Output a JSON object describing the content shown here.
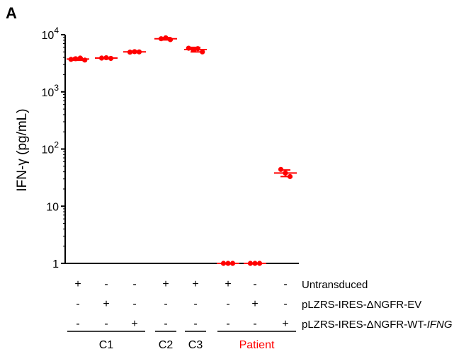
{
  "panel_label": "A",
  "chart_data": {
    "type": "scatter",
    "ylabel": "IFN-γ (pg/mL)",
    "yscale": "log",
    "ylim": [
      1,
      10000
    ],
    "yticks": [
      {
        "value": 1,
        "base": "1",
        "exp": ""
      },
      {
        "value": 10,
        "base": "10",
        "exp": ""
      },
      {
        "value": 100,
        "base": "10",
        "exp": "2"
      },
      {
        "value": 1000,
        "base": "10",
        "exp": "3"
      },
      {
        "value": 10000,
        "base": "10",
        "exp": "4"
      }
    ],
    "point_color": "#ff0000",
    "highlight_color": "#ff0000",
    "groups": [
      {
        "points": [
          3700,
          3800,
          3900,
          3600
        ],
        "mean": 3750,
        "sd": 180
      },
      {
        "points": [
          3900,
          3950,
          3850
        ],
        "mean": 3900,
        "sd": 60
      },
      {
        "points": [
          4950,
          5050,
          5000
        ],
        "mean": 5000,
        "sd": 150
      },
      {
        "points": [
          8500,
          8800,
          8200
        ],
        "mean": 8500,
        "sd": 400
      },
      {
        "points": [
          5800,
          5500,
          5700,
          5000
        ],
        "mean": 5500,
        "sd": 500
      },
      {
        "points": [
          1,
          1,
          1
        ],
        "mean": 1,
        "sd": 0
      },
      {
        "points": [
          1,
          1,
          1
        ],
        "mean": 1,
        "sd": 0
      },
      {
        "points": [
          44,
          38,
          33
        ],
        "mean": 38,
        "sd": 5
      }
    ],
    "conditions": [
      {
        "label": "Untransduced",
        "label_parts": [
          "Untransduced"
        ],
        "italic_suffix": "",
        "signs": [
          "+",
          "-",
          "-",
          "+",
          "+",
          "+",
          "-",
          "-"
        ]
      },
      {
        "label": "pLZRS-IRES-ΔNGFR-EV",
        "label_parts": [
          "pLZRS-IRES-ΔNGFR-EV"
        ],
        "italic_suffix": "",
        "signs": [
          "-",
          "+",
          "-",
          "-",
          "-",
          "-",
          "+",
          "-"
        ]
      },
      {
        "label": "pLZRS-IRES-ΔNGFR-WT-IFNG",
        "label_parts": [
          "pLZRS-IRES-ΔNGFR-WT-"
        ],
        "italic_suffix": "IFNG",
        "signs": [
          "-",
          "-",
          "+",
          "-",
          "-",
          "-",
          "-",
          "+"
        ]
      }
    ],
    "sample_groups": [
      {
        "label": "C1",
        "from": 0,
        "to": 2,
        "highlight": false
      },
      {
        "label": "C2",
        "from": 3,
        "to": 3,
        "highlight": false
      },
      {
        "label": "C3",
        "from": 4,
        "to": 4,
        "highlight": false
      },
      {
        "label": "Patient",
        "from": 5,
        "to": 7,
        "highlight": true
      }
    ]
  }
}
